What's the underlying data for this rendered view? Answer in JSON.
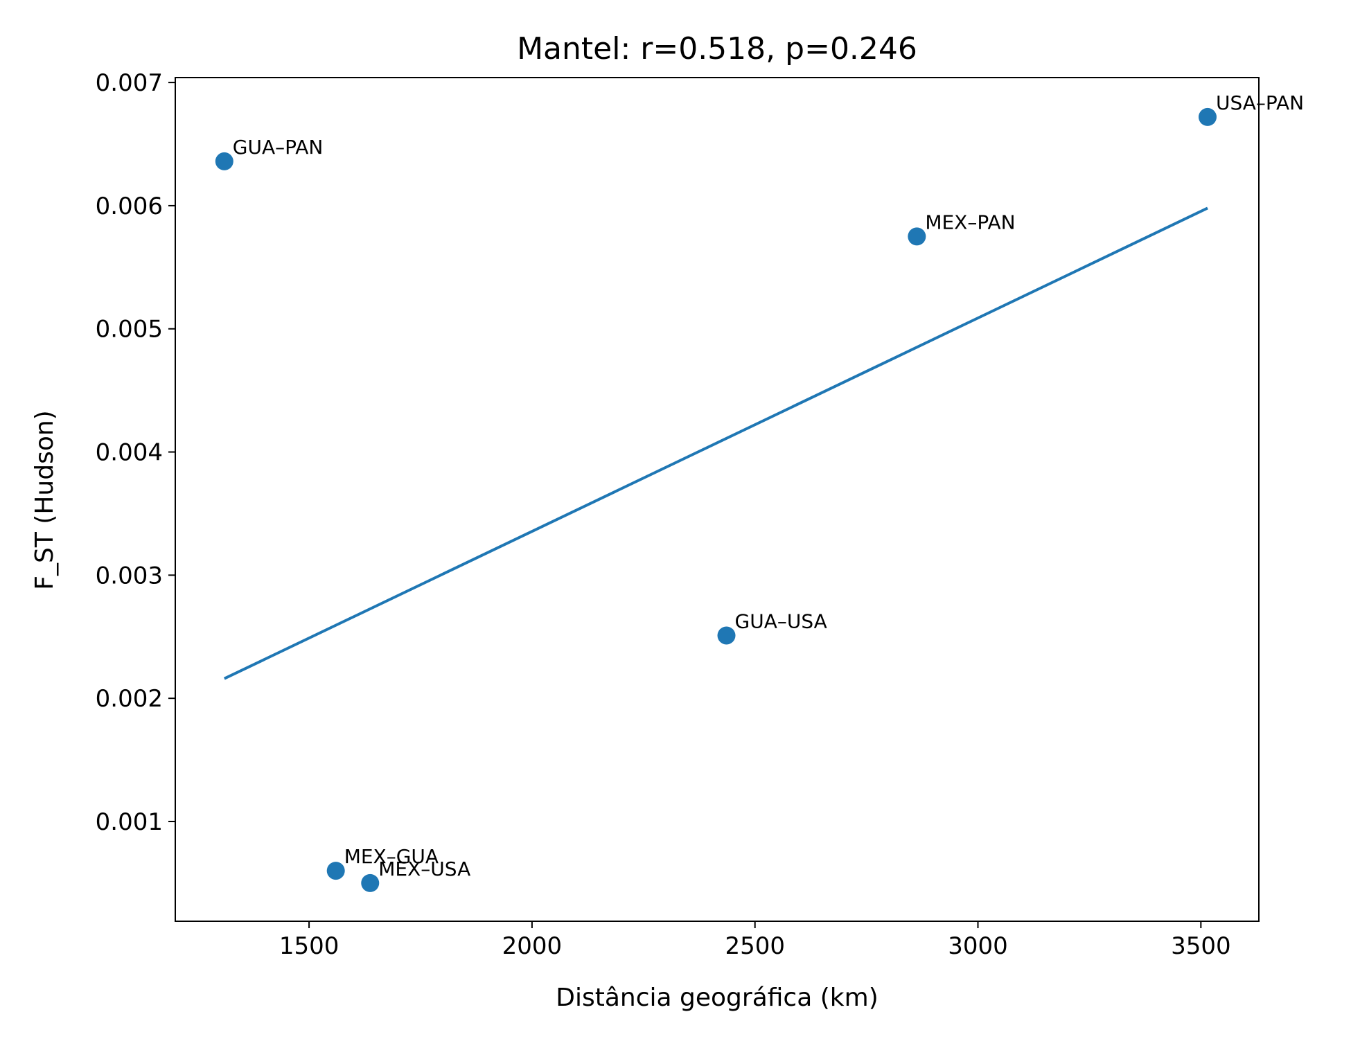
{
  "chart_data": {
    "type": "scatter",
    "title": "Mantel: r=0.518, p=0.246",
    "xlabel": "Distância geográfica (km)",
    "ylabel": "F_ST (Hudson)",
    "xlim": [
      1200,
      3630
    ],
    "ylim": [
      0.00019,
      0.00704
    ],
    "xticks": [
      1500,
      2000,
      2500,
      3000,
      3500
    ],
    "xtick_labels": [
      "1500",
      "2000",
      "2500",
      "3000",
      "3500"
    ],
    "yticks": [
      0.001,
      0.002,
      0.003,
      0.004,
      0.005,
      0.006,
      0.007
    ],
    "ytick_labels": [
      "0.001",
      "0.002",
      "0.003",
      "0.004",
      "0.005",
      "0.006",
      "0.007"
    ],
    "grid": false,
    "color": "#1f77b4",
    "points": [
      {
        "label": "GUA–PAN",
        "x": 1310,
        "y": 0.00636
      },
      {
        "label": "MEX–GUA",
        "x": 1560,
        "y": 0.0006
      },
      {
        "label": "MEX–USA",
        "x": 1637,
        "y": 0.0005
      },
      {
        "label": "GUA–USA",
        "x": 2436,
        "y": 0.00251
      },
      {
        "label": "MEX–PAN",
        "x": 2863,
        "y": 0.00575
      },
      {
        "label": "USA–PAN",
        "x": 3515,
        "y": 0.00672
      }
    ],
    "fit_line": {
      "x": [
        1310,
        3515
      ],
      "y": [
        0.00216,
        0.00598
      ]
    }
  }
}
